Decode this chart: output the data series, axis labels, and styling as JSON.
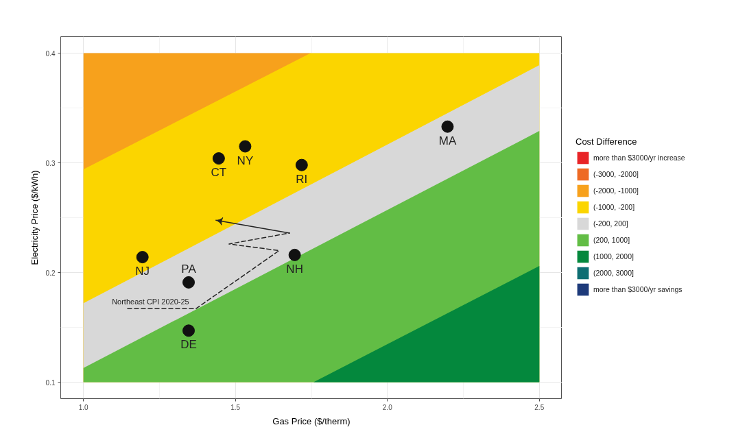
{
  "chart_data": {
    "type": "scatter",
    "xlabel": "Gas Price ($/therm)",
    "ylabel": "Electricity Price ($/kWh)",
    "legend_title": "Cost Difference",
    "legend": "right",
    "grid": true,
    "xlim": [
      0.925,
      2.575
    ],
    "ylim": [
      0.085,
      0.415
    ],
    "xticks": [
      {
        "value": 1,
        "label": "1.0"
      },
      1.5,
      {
        "value": 2,
        "label": "2.0"
      },
      2.5
    ],
    "yticks": [
      0.1,
      0.2,
      0.3,
      0.4
    ],
    "series": [
      {
        "name": "more than $3000/yr increase",
        "type": "area",
        "color": "#e82427"
      },
      {
        "name": "(-3000, -2000]",
        "type": "area",
        "color": "#ee6a24"
      },
      {
        "name": "(-2000, -1000]",
        "type": "area",
        "color": "#f7a11c",
        "x": [
          1.0,
          1.747
        ],
        "values": [
          0.4,
          0.4
        ]
      },
      {
        "name": "(-1000, -200]",
        "type": "area",
        "color": "#fbd500",
        "x": [
          1.0,
          1.747,
          2.5
        ],
        "values": [
          0.294,
          0.4,
          0.4
        ]
      },
      {
        "name": "(-200, 200]",
        "type": "area",
        "color": "#d8d8d8",
        "x": [
          1.0,
          2.5
        ],
        "values": [
          0.172,
          0.389
        ]
      },
      {
        "name": "(200, 1000]",
        "type": "area",
        "color": "#62bd45",
        "x": [
          1.0,
          2.5
        ],
        "values": [
          0.113,
          0.329
        ]
      },
      {
        "name": "(1000, 2000]",
        "type": "area",
        "color": "#04883d",
        "x": [
          1.757,
          2.5
        ],
        "values": [
          0.1,
          0.206
        ]
      },
      {
        "name": "(2000, 3000]",
        "type": "area",
        "color": "#0e6e72"
      },
      {
        "name": "more than $3000/yr savings",
        "type": "area",
        "color": "#1d3a7a"
      },
      {
        "color": "#111111",
        "marker": "circle",
        "x": [
          1.194,
          1.346,
          1.346,
          1.445,
          1.532,
          1.718,
          2.198,
          1.695
        ],
        "values": [
          0.214,
          0.191,
          0.147,
          0.304,
          0.315,
          0.298,
          0.333,
          0.216
        ]
      },
      {
        "name": "Northeast CPI 2020-25",
        "type": "line",
        "color": "#222222",
        "line_style": "dashed",
        "x": [
          1.145,
          1.37,
          1.644,
          1.479,
          1.678
        ],
        "values": [
          0.167,
          0.167,
          0.22,
          0.226,
          0.236
        ]
      },
      {
        "type": "line",
        "color": "#222222",
        "line_style": "solid",
        "x": [
          1.678,
          1.449
        ],
        "values": [
          0.236,
          0.247
        ]
      }
    ],
    "annotations": [
      {
        "text": "NJ",
        "x": 1.194,
        "y": 0.214
      },
      {
        "text": "PA",
        "x": 1.346,
        "y": 0.191
      },
      {
        "text": "DE",
        "x": 1.346,
        "y": 0.147
      },
      {
        "text": "CT",
        "x": 1.445,
        "y": 0.304
      },
      {
        "text": "NY",
        "x": 1.532,
        "y": 0.315
      },
      {
        "text": "RI",
        "x": 1.718,
        "y": 0.298
      },
      {
        "text": "MA",
        "x": 2.198,
        "y": 0.333
      },
      {
        "text": "NH",
        "x": 1.695,
        "y": 0.216
      }
    ]
  }
}
